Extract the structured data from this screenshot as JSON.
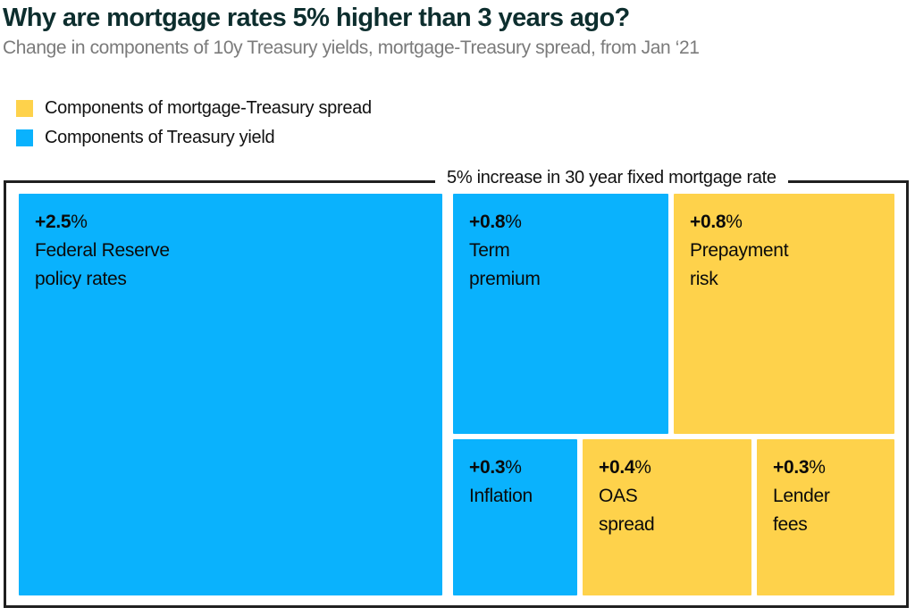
{
  "header": {
    "title": "Why are mortgage rates 5% higher than 3 years ago?",
    "subtitle": "Change in components of 10y Treasury yields, mortgage-Treasury spread, from Jan ‘21"
  },
  "legend": {
    "items": [
      {
        "label": "Components of mortgage-Treasury spread",
        "color": "#fed24b",
        "group": "spread"
      },
      {
        "label": "Components of Treasury yield",
        "color": "#0ab2fd",
        "group": "treasury"
      }
    ]
  },
  "annotation": {
    "label": "5% increase in 30 year fixed mortgage rate"
  },
  "tiles": [
    {
      "value": "+2.5",
      "percent_sign": "%",
      "lines": [
        "Federal Reserve",
        "policy rates"
      ],
      "group": "treasury"
    },
    {
      "value": "+0.8",
      "percent_sign": "%",
      "lines": [
        "Term",
        "premium"
      ],
      "group": "treasury"
    },
    {
      "value": "+0.8",
      "percent_sign": "%",
      "lines": [
        "Prepayment",
        "risk"
      ],
      "group": "spread"
    },
    {
      "value": "+0.3",
      "percent_sign": "%",
      "lines": [
        "Inflation"
      ],
      "group": "treasury"
    },
    {
      "value": "+0.4",
      "percent_sign": "%",
      "lines": [
        "OAS",
        "spread"
      ],
      "group": "spread"
    },
    {
      "value": "+0.3",
      "percent_sign": "%",
      "lines": [
        "Lender",
        "fees"
      ],
      "group": "spread"
    }
  ],
  "colors": {
    "treasury_blue": "#0ab2fd",
    "spread_yellow": "#fed24b",
    "title_teal": "#0d2e2e",
    "subtitle_gray": "#7b7b7b",
    "frame_black": "#1f1f1f"
  },
  "chart_data": {
    "type": "treemap",
    "title": "Why are mortgage rates 5% higher than 3 years ago?",
    "subtitle": "Change in components of 10y Treasury yields, mortgage-Treasury spread, from Jan '21",
    "total_label": "5% increase in 30 year fixed mortgage rate",
    "total_value_pct": 5.0,
    "legend_position": "top-left",
    "series": [
      {
        "name": "Components of Treasury yield",
        "color": "#0ab2fd",
        "items": [
          {
            "label": "Federal Reserve policy rates",
            "value_pct": 2.5
          },
          {
            "label": "Term premium",
            "value_pct": 0.8
          },
          {
            "label": "Inflation",
            "value_pct": 0.3
          }
        ]
      },
      {
        "name": "Components of mortgage-Treasury spread",
        "color": "#fed24b",
        "items": [
          {
            "label": "Prepayment risk",
            "value_pct": 0.8
          },
          {
            "label": "OAS spread",
            "value_pct": 0.4
          },
          {
            "label": "Lender fees",
            "value_pct": 0.3
          }
        ]
      }
    ]
  }
}
